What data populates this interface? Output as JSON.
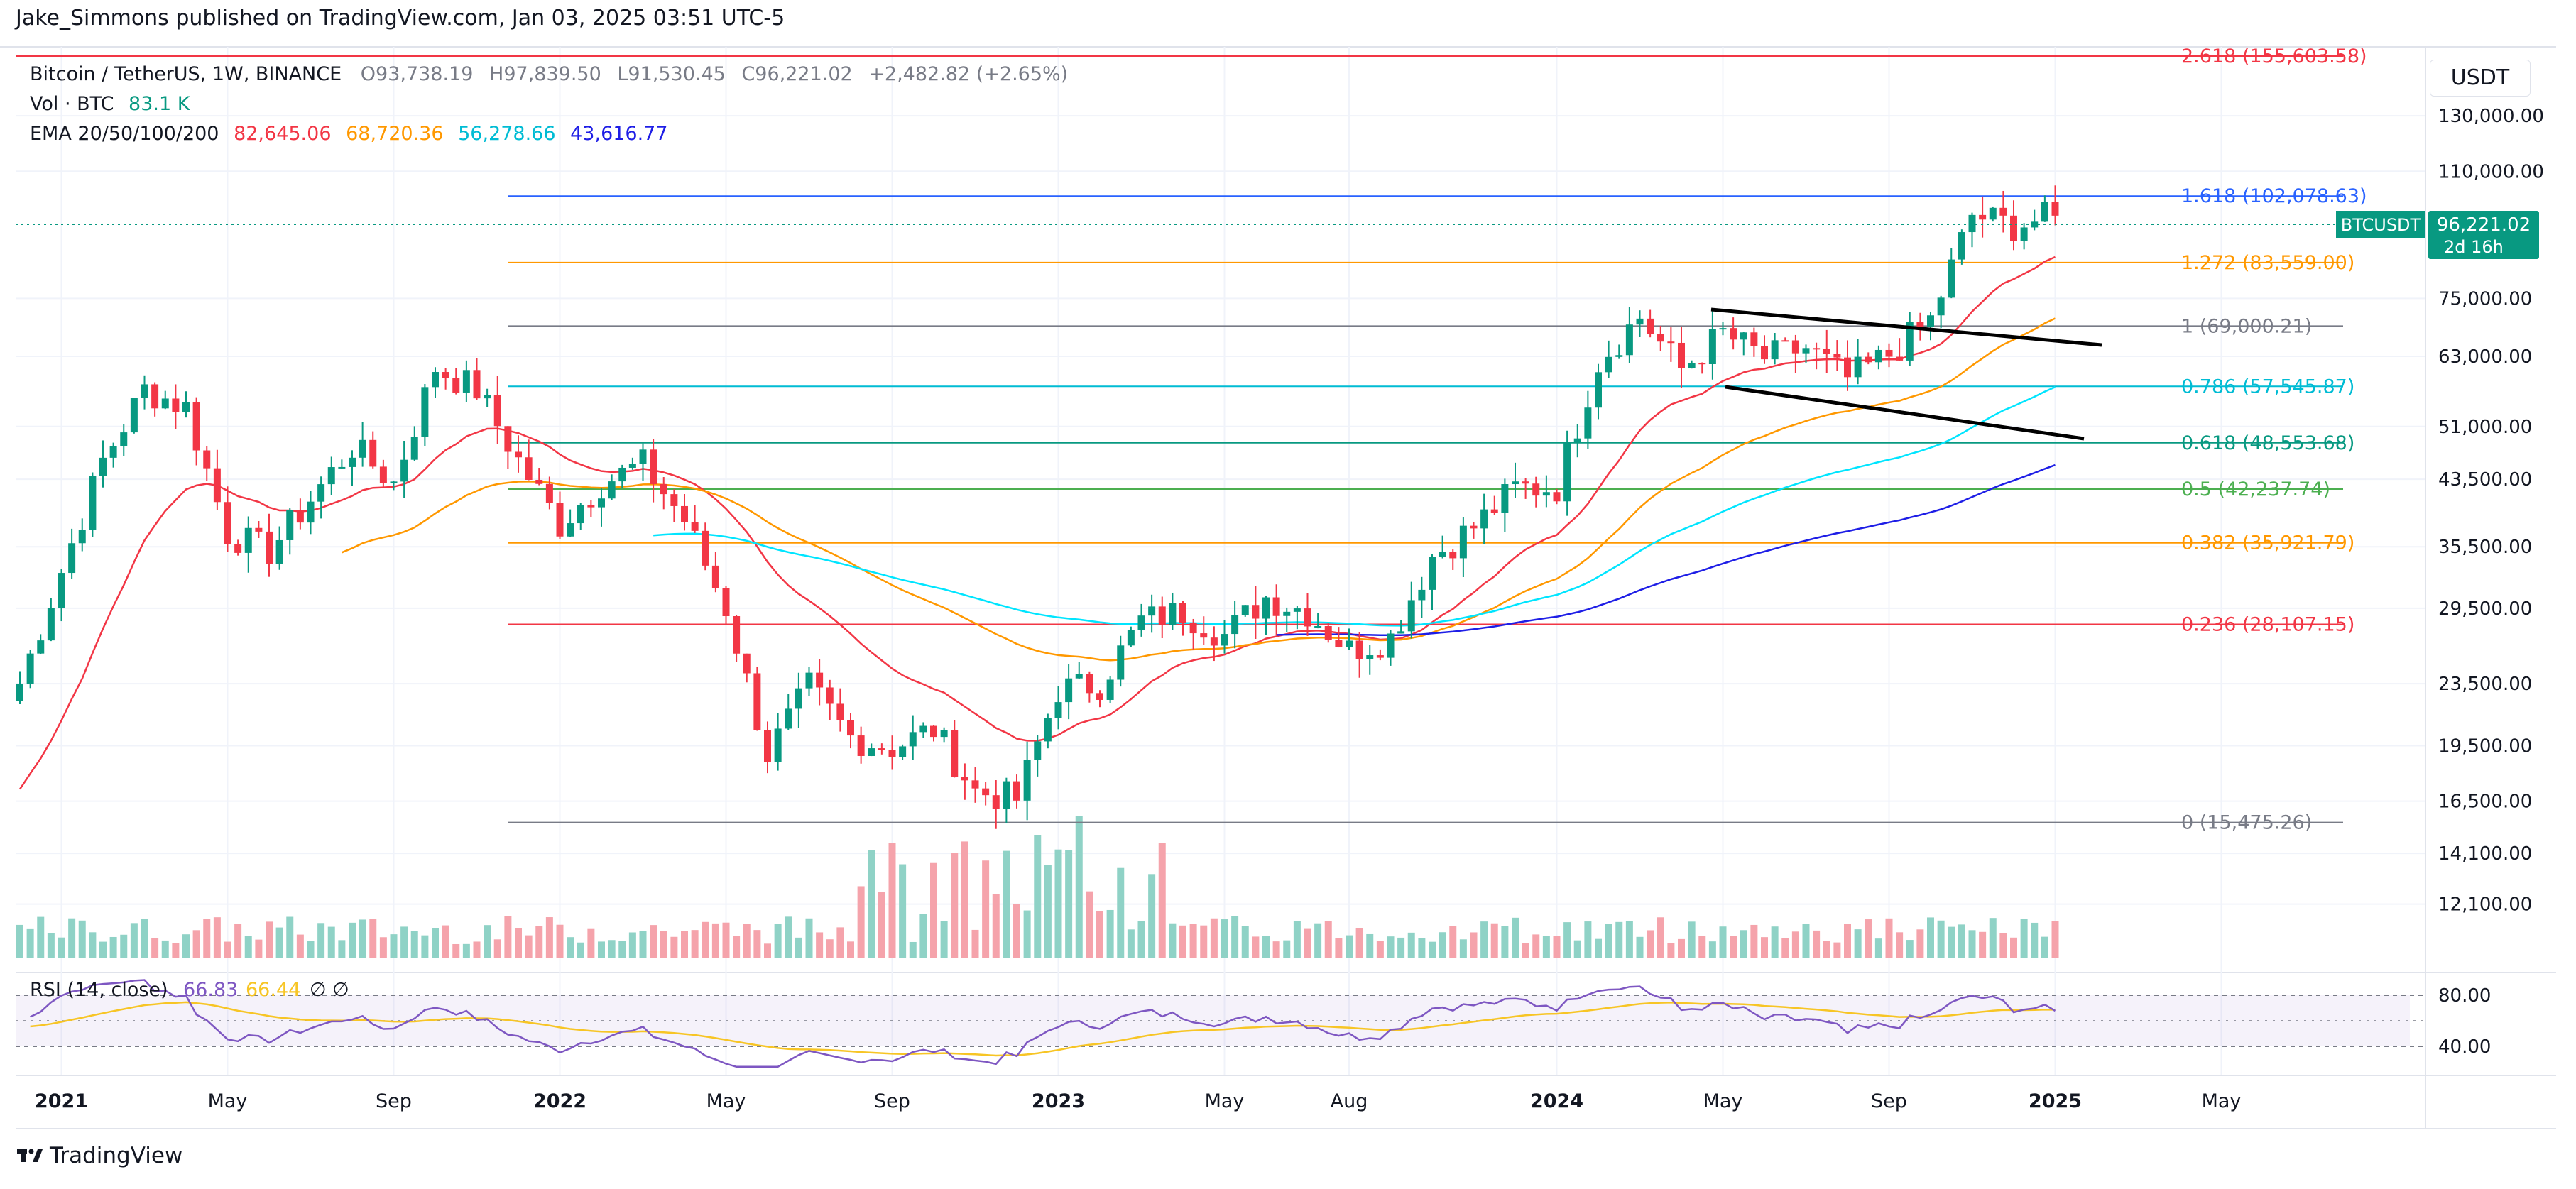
{
  "header": {
    "published": "Jake_Simmons published on TradingView.com, Jan 03, 2025 03:51 UTC-5"
  },
  "legend": {
    "symbol": "Bitcoin / TetherUS, 1W, BINANCE",
    "ohlc": {
      "o_label": "O",
      "o": "93,738.19",
      "h_label": "H",
      "h": "97,839.50",
      "l_label": "L",
      "l": "91,530.45",
      "c_label": "C",
      "c": "96,221.02",
      "change": "+2,482.82 (+2.65%)"
    },
    "vol_label": "Vol · BTC",
    "vol_value": "83.1 K",
    "ema_label": "EMA 20/50/100/200",
    "ema_values": [
      {
        "value": "82,645.06",
        "color": "#f23645"
      },
      {
        "value": "68,720.36",
        "color": "#ff9800"
      },
      {
        "value": "56,278.66",
        "color": "#00e5ff"
      },
      {
        "value": "43,616.77",
        "color": "#1e1ee6"
      }
    ]
  },
  "currency": "USDT",
  "price_tag": {
    "symbol": "BTCUSDT",
    "price": "96,221.02",
    "countdown": "2d 16h",
    "color": "#089981"
  },
  "rsi": {
    "label": "RSI (14, close)",
    "value1": "66.83",
    "value2": "66.44",
    "symbols": "∅ ∅",
    "levels": [
      "80.00",
      "40.00"
    ]
  },
  "footer": {
    "brand": "TradingView"
  },
  "chart_data": {
    "type": "candlestick",
    "title": "Bitcoin / TetherUS, 1W, BINANCE",
    "y_scale": "log",
    "ylim": [
      10500,
      160000
    ],
    "y_ticks": [
      "130,000.00",
      "110,000.00",
      "75,000.00",
      "63,000.00",
      "51,000.00",
      "43,500.00",
      "35,500.00",
      "29,500.00",
      "23,500.00",
      "19,500.00",
      "16,500.00",
      "14,100.00",
      "12,100.00"
    ],
    "y_tick_values": [
      130000,
      110000,
      75000,
      63000,
      51000,
      43500,
      35500,
      29500,
      23500,
      19500,
      16500,
      14100,
      12100
    ],
    "x_ticks": [
      "2021",
      "May",
      "Sep",
      "2022",
      "May",
      "Sep",
      "2023",
      "May",
      "Aug",
      "2024",
      "May",
      "Sep",
      "2025",
      "May"
    ],
    "x_tick_dates": [
      "2021-01",
      "2021-05",
      "2021-09",
      "2022-01",
      "2022-05",
      "2022-09",
      "2023-01",
      "2023-05",
      "2023-08",
      "2024-01",
      "2024-05",
      "2024-09",
      "2025-01",
      "2025-05"
    ],
    "fib_levels": [
      {
        "label": "2.618 (155,603.58)",
        "value": 155603.58,
        "color": "#f23645"
      },
      {
        "label": "1.618 (102,078.63)",
        "value": 102078.63,
        "color": "#2962ff"
      },
      {
        "label": "1.272 (83,559.00)",
        "value": 83559.0,
        "color": "#ff9800"
      },
      {
        "label": "1 (69,000.21)",
        "value": 69000.21,
        "color": "#787b86"
      },
      {
        "label": "0.786 (57,545.87)",
        "value": 57545.87,
        "color": "#00bcd4"
      },
      {
        "label": "0.618 (48,553.68)",
        "value": 48553.68,
        "color": "#089981"
      },
      {
        "label": "0.5 (42,237.74)",
        "value": 42237.74,
        "color": "#4caf50"
      },
      {
        "label": "0.382 (35,921.79)",
        "value": 35921.79,
        "color": "#ff9800"
      },
      {
        "label": "0.236 (28,107.15)",
        "value": 28107.15,
        "color": "#f23645"
      },
      {
        "label": "0 (15,475.26)",
        "value": 15475.26,
        "color": "#787b86"
      }
    ],
    "weekly_closes_approx": [
      {
        "date": "2020-12",
        "close": 23500
      },
      {
        "date": "2021-01",
        "close": 33000
      },
      {
        "date": "2021-02",
        "close": 46000
      },
      {
        "date": "2021-03",
        "close": 57000
      },
      {
        "date": "2021-04",
        "close": 54000
      },
      {
        "date": "2021-05",
        "close": 37000
      },
      {
        "date": "2021-06",
        "close": 35000
      },
      {
        "date": "2021-07",
        "close": 41000
      },
      {
        "date": "2021-08",
        "close": 48000
      },
      {
        "date": "2021-09",
        "close": 43000
      },
      {
        "date": "2021-10",
        "close": 61000
      },
      {
        "date": "2021-11",
        "close": 57000
      },
      {
        "date": "2021-12",
        "close": 46000
      },
      {
        "date": "2022-01",
        "close": 38000
      },
      {
        "date": "2022-02",
        "close": 43000
      },
      {
        "date": "2022-03",
        "close": 45500
      },
      {
        "date": "2022-04",
        "close": 38500
      },
      {
        "date": "2022-05",
        "close": 29500
      },
      {
        "date": "2022-06",
        "close": 19000
      },
      {
        "date": "2022-07",
        "close": 23300
      },
      {
        "date": "2022-08",
        "close": 20000
      },
      {
        "date": "2022-09",
        "close": 19400
      },
      {
        "date": "2022-10",
        "close": 20500
      },
      {
        "date": "2022-11",
        "close": 17000
      },
      {
        "date": "2022-12",
        "close": 16600
      },
      {
        "date": "2023-01",
        "close": 23100
      },
      {
        "date": "2023-02",
        "close": 23500
      },
      {
        "date": "2023-03",
        "close": 28400
      },
      {
        "date": "2023-04",
        "close": 29200
      },
      {
        "date": "2023-05",
        "close": 27200
      },
      {
        "date": "2023-06",
        "close": 30500
      },
      {
        "date": "2023-07",
        "close": 29200
      },
      {
        "date": "2023-08",
        "close": 26000
      },
      {
        "date": "2023-09",
        "close": 27000
      },
      {
        "date": "2023-10",
        "close": 34500
      },
      {
        "date": "2023-11",
        "close": 37700
      },
      {
        "date": "2023-12",
        "close": 42300
      },
      {
        "date": "2024-01",
        "close": 42500
      },
      {
        "date": "2024-02",
        "close": 62000
      },
      {
        "date": "2024-03",
        "close": 71000
      },
      {
        "date": "2024-04",
        "close": 60600
      },
      {
        "date": "2024-05",
        "close": 67500
      },
      {
        "date": "2024-06",
        "close": 62700
      },
      {
        "date": "2024-07",
        "close": 64600
      },
      {
        "date": "2024-08",
        "close": 58900
      },
      {
        "date": "2024-09",
        "close": 63300
      },
      {
        "date": "2024-10",
        "close": 70200
      },
      {
        "date": "2024-11",
        "close": 96400
      },
      {
        "date": "2024-12",
        "close": 93400
      },
      {
        "date": "2025-01",
        "close": 96221
      }
    ],
    "series": [
      {
        "name": "EMA 20",
        "color": "#f23645",
        "last": 82645.06
      },
      {
        "name": "EMA 50",
        "color": "#ff9800",
        "last": 68720.36
      },
      {
        "name": "EMA 100",
        "color": "#00e5ff",
        "last": 56278.66
      },
      {
        "name": "EMA 200",
        "color": "#1e1ee6",
        "last": 43616.77
      }
    ],
    "rsi_ylim": [
      20,
      95
    ],
    "rsi_bands": [
      80,
      40
    ]
  }
}
